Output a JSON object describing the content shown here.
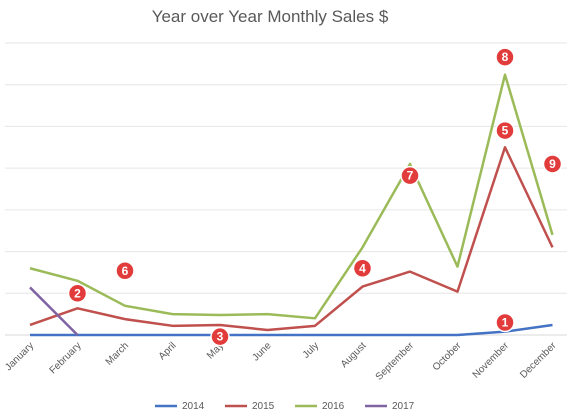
{
  "chart_data": {
    "type": "line",
    "title": "Year over Year Monthly Sales $",
    "categories": [
      "January",
      "February",
      "March",
      "April",
      "May",
      "June",
      "July",
      "August",
      "September",
      "October",
      "November",
      "December"
    ],
    "ylim": [
      0,
      350
    ],
    "grid": true,
    "legend_position": "bottom",
    "series": [
      {
        "name": "2014",
        "color": "#4472C4",
        "values": [
          0,
          0,
          0,
          0,
          0,
          0,
          0,
          0,
          0,
          0,
          4,
          12
        ]
      },
      {
        "name": "2015",
        "color": "#C0504D",
        "values": [
          12,
          32,
          19,
          11,
          12,
          6,
          11,
          58,
          76,
          52,
          225,
          105
        ]
      },
      {
        "name": "2016",
        "color": "#9BBB59",
        "values": [
          80,
          65,
          35,
          25,
          24,
          25,
          20,
          105,
          205,
          82,
          312,
          120
        ]
      },
      {
        "name": "2017",
        "color": "#8064A2",
        "values": [
          57,
          0,
          null,
          null,
          null,
          null,
          null,
          null,
          null,
          null,
          null,
          null
        ]
      }
    ],
    "annotations": [
      {
        "label": "1",
        "month": "November",
        "value": 15
      },
      {
        "label": "2",
        "month": "February",
        "value": 50
      },
      {
        "label": "3",
        "month": "May",
        "value": -2
      },
      {
        "label": "4",
        "month": "August",
        "value": 80
      },
      {
        "label": "5",
        "month": "November",
        "value": 245
      },
      {
        "label": "6",
        "month": "March",
        "value": 77
      },
      {
        "label": "7",
        "month": "September",
        "value": 191
      },
      {
        "label": "8",
        "month": "November",
        "value": 333
      },
      {
        "label": "9",
        "month": "December",
        "value": 205
      }
    ],
    "marker_color": "#E23B3B"
  }
}
